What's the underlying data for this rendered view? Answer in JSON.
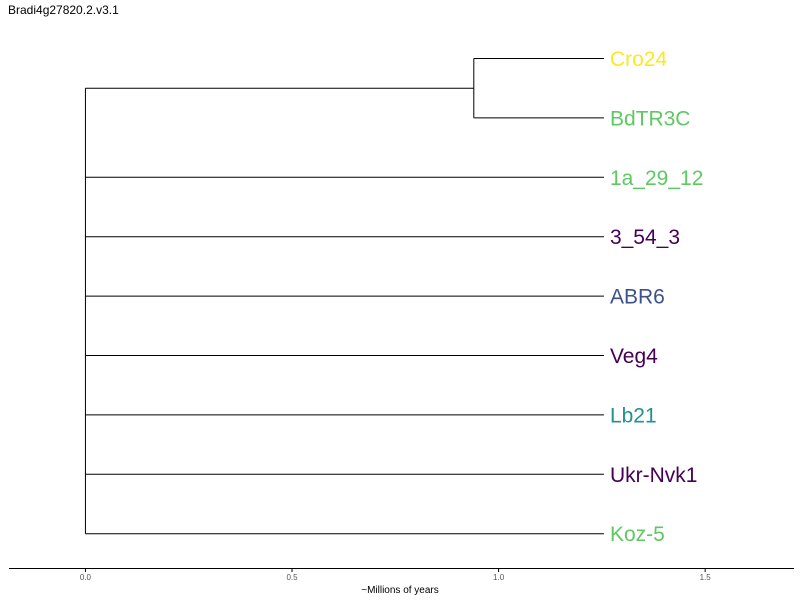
{
  "chart_data": {
    "type": "dendrogram",
    "title": "Bradi4g27820.2.v3.1",
    "xlabel": "~Millions of years",
    "xlim": [
      -0.185,
      1.715
    ],
    "xticks": [
      0.0,
      0.5,
      1.0,
      1.5
    ],
    "xtick_labels": [
      "0.0",
      "0.5",
      "1.0",
      "1.5"
    ],
    "root": 0.0,
    "leaf_depth": 1.255,
    "clades": [
      {
        "node": 0.94,
        "leaves": [
          {
            "name": "Cro24",
            "color": "#FDE725"
          },
          {
            "name": "BdTR3C",
            "color": "#5EC962"
          }
        ]
      }
    ],
    "leaves": [
      {
        "name": "Cro24",
        "color": "#FDE725"
      },
      {
        "name": "BdTR3C",
        "color": "#5EC962"
      },
      {
        "name": "1a_29_12",
        "color": "#5EC962"
      },
      {
        "name": "3_54_3",
        "color": "#440154"
      },
      {
        "name": "ABR6",
        "color": "#3B528B"
      },
      {
        "name": "Veg4",
        "color": "#440154"
      },
      {
        "name": "Lb21",
        "color": "#21918C"
      },
      {
        "name": "Ukr-Nvk1",
        "color": "#440154"
      },
      {
        "name": "Koz-5",
        "color": "#5EC962"
      }
    ]
  }
}
